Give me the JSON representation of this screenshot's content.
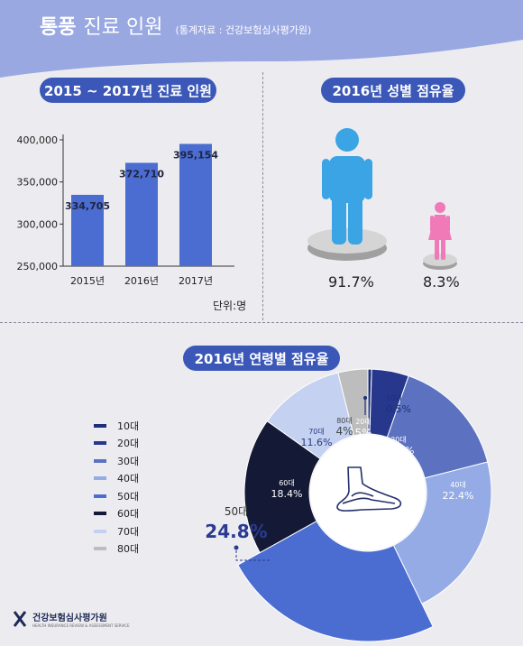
{
  "header": {
    "title_bold": "통풍",
    "title_rest": "진료 인원",
    "source": "(통계자료 : 건강보험심사평가원)"
  },
  "colors": {
    "accent": "#3b58b8",
    "bar": "#4b6cd0",
    "male": "#3aa4e4",
    "female": "#f07ab8",
    "header_wave": "#9aa8e2"
  },
  "chart_data": [
    {
      "type": "bar",
      "title": "2015 ~ 2017년 진료 인원",
      "categories": [
        "2015년",
        "2016년",
        "2017년"
      ],
      "values": [
        334705,
        372710,
        395154
      ],
      "value_labels": [
        "334,705",
        "372,710",
        "395,154"
      ],
      "ylim": [
        250000,
        400000
      ],
      "yticks": [
        250000,
        300000,
        350000,
        400000
      ],
      "ytick_labels": [
        "250,000",
        "300,000",
        "350,000",
        "400,000"
      ],
      "unit_label": "단위:명",
      "grid": false
    },
    {
      "type": "pie",
      "title": "2016년 성별 점유율",
      "categories": [
        "male",
        "female"
      ],
      "values": [
        91.7,
        8.3
      ],
      "value_labels": [
        "91.7%",
        "8.3%"
      ]
    },
    {
      "type": "pie",
      "title": "2016년 연령별 점유율",
      "categories": [
        "10대",
        "20대",
        "30대",
        "40대",
        "50대",
        "60대",
        "70대",
        "80대"
      ],
      "values": [
        0.5,
        5,
        16.1,
        22.4,
        24.8,
        18.4,
        11.6,
        4
      ],
      "value_labels": [
        "0.5%",
        "5%",
        "16.1%",
        "22.4%",
        "24.8%",
        "18.4%",
        "11.6%",
        "4%"
      ],
      "colors": [
        "#1b2f7a",
        "#27388c",
        "#5c72c0",
        "#94abe6",
        "#4b6cd0",
        "#141a36",
        "#c4d1f1",
        "#bdbdbd"
      ],
      "legend_position": "left"
    }
  ],
  "logo": {
    "name": "건강보험심사평가원",
    "sub": "HEALTH INSURANCE REVIEW & ASSESSMENT SERVICE"
  }
}
